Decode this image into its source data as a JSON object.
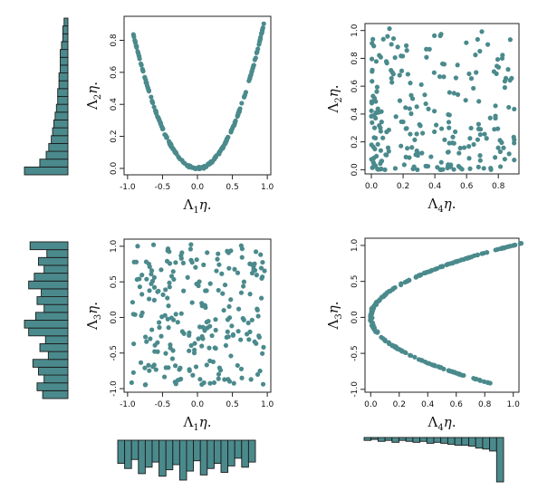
{
  "colors": {
    "points": "#4b8a8c",
    "bars": "#4b8a8c",
    "bar_edge": "#1b1b1b",
    "axes": "#222222"
  },
  "chart_data": [
    {
      "id": "p1",
      "type": "scatter",
      "xlabel": "Λ1η.",
      "ylabel": "Λ2η.",
      "xlim": [
        -1.05,
        1.05
      ],
      "ylim": [
        -0.04,
        0.95
      ],
      "xticks": [
        "-1.0",
        "-0.5",
        "0.0",
        "0.5",
        "1.0"
      ],
      "xtick_values": [
        -1,
        -0.5,
        0,
        0.5,
        1
      ],
      "yticks": [
        "0.0",
        "0.2",
        "0.4",
        "0.6",
        "0.8"
      ],
      "ytick_values": [
        0,
        0.2,
        0.4,
        0.6,
        0.8
      ],
      "pattern": "y = x^2, x in [-0.92, 0.97]",
      "marginal_histogram": {
        "side": "left",
        "variable": "Λ2η.",
        "bins": 20,
        "counts": [
          34,
          22,
          17,
          15,
          13,
          12,
          11,
          10,
          9,
          8,
          8,
          7,
          7,
          6,
          6,
          6,
          5,
          4,
          4,
          3
        ]
      }
    },
    {
      "id": "p2",
      "type": "scatter",
      "xlabel": "Λ4η.",
      "ylabel": "Λ2η.",
      "xlim": [
        -0.04,
        0.93
      ],
      "ylim": [
        -0.03,
        1.05
      ],
      "xticks": [
        "0.0",
        "0.2",
        "0.4",
        "0.6",
        "0.8"
      ],
      "xtick_values": [
        0,
        0.2,
        0.4,
        0.6,
        0.8
      ],
      "yticks": [
        "0.0",
        "0.2",
        "0.4",
        "0.6",
        "0.8",
        "1.0"
      ],
      "ytick_values": [
        0,
        0.2,
        0.4,
        0.6,
        0.8,
        1.0
      ],
      "pattern": "uncorrelated cloud, denser near x = 0 and y = 0"
    },
    {
      "id": "p3",
      "type": "scatter",
      "xlabel": "Λ1η.",
      "ylabel": "Λ3η.",
      "xlim": [
        -1.05,
        1.05
      ],
      "ylim": [
        -1.05,
        1.1
      ],
      "xticks": [
        "-1.0",
        "-0.5",
        "0.0",
        "0.5",
        "1.0"
      ],
      "xtick_values": [
        -1,
        -0.5,
        0,
        0.5,
        1
      ],
      "yticks": [
        "-1.0",
        "-0.5",
        "0.0",
        "0.5",
        "1.0"
      ],
      "ytick_values": [
        -1,
        -0.5,
        0,
        0.5,
        1
      ],
      "pattern": "uniform cloud over [-1, 1] x [-1, 1]",
      "marginal_histogram": {
        "side": "left",
        "variable": "Λ3η.",
        "bins": 20,
        "counts": [
          18,
          22,
          17,
          21,
          25,
          14,
          20,
          16,
          28,
          31,
          23,
          17,
          22,
          19,
          28,
          24,
          17,
          21,
          15,
          27
        ]
      }
    },
    {
      "id": "p4",
      "type": "scatter",
      "xlabel": "Λ4η.",
      "ylabel": "Λ3η.",
      "xlim": [
        -0.04,
        1.04
      ],
      "ylim": [
        -1.04,
        1.1
      ],
      "xticks": [
        "0.0",
        "0.2",
        "0.4",
        "0.6",
        "0.8",
        "1.0"
      ],
      "xtick_values": [
        0,
        0.2,
        0.4,
        0.6,
        0.8,
        1.0
      ],
      "yticks": [
        "-1.0",
        "-0.5",
        "0.0",
        "0.5",
        "1.0"
      ],
      "ytick_values": [
        -1,
        -0.5,
        0,
        0.5,
        1
      ],
      "pattern": "x = y^2, upper branch to (1.0, 1.05), lower branch to (0.8, -0.92)"
    },
    {
      "id": "h_bottom_left",
      "type": "bar",
      "variable": "Λ1η.",
      "bins": 20,
      "counts": [
        18,
        22,
        15,
        26,
        21,
        17,
        28,
        23,
        19,
        31,
        24,
        16,
        27,
        22,
        18,
        25,
        20,
        14,
        21,
        17
      ]
    },
    {
      "id": "h_bottom_right",
      "type": "bar",
      "variable": "Λ4η.",
      "bins": 20,
      "counts": [
        3,
        2,
        4,
        3,
        5,
        3,
        4,
        5,
        4,
        6,
        5,
        6,
        7,
        8,
        8,
        9,
        11,
        12,
        14,
        46
      ]
    }
  ]
}
